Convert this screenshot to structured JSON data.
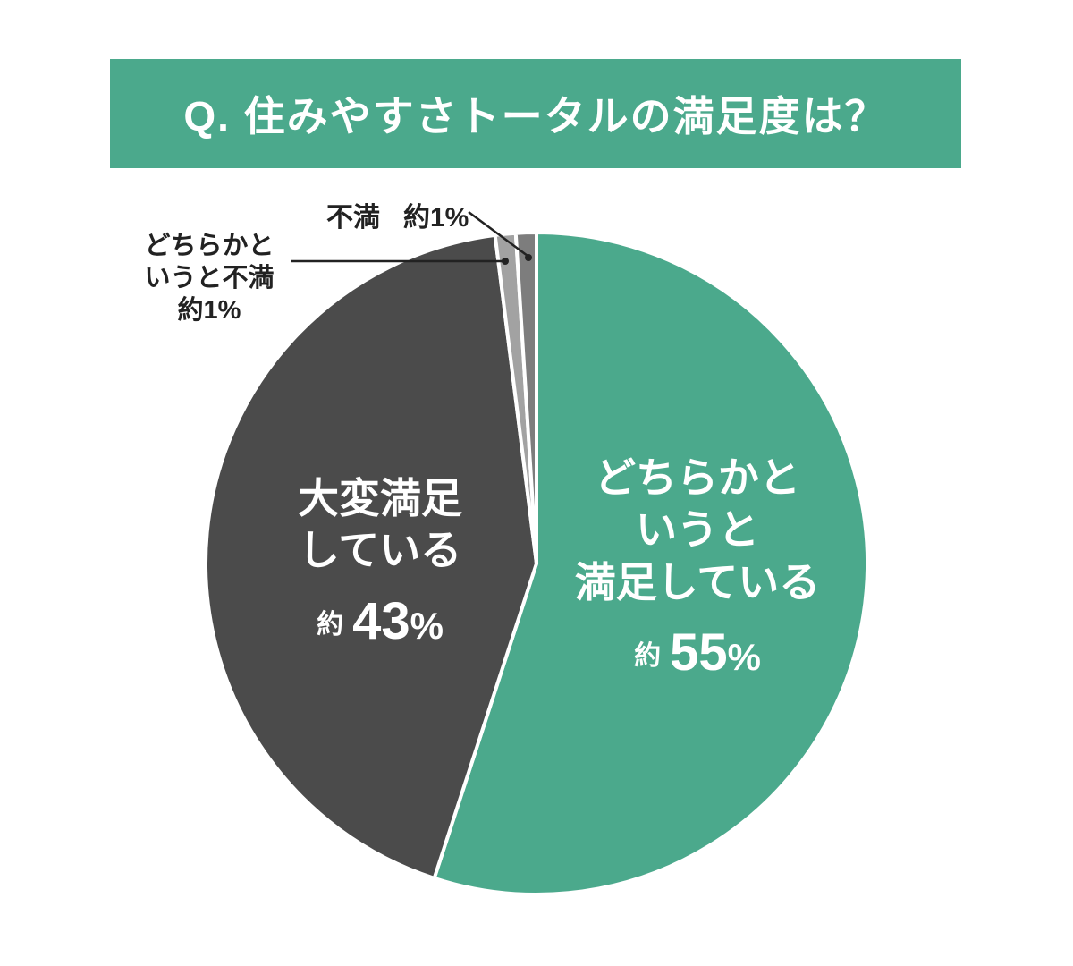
{
  "header": {
    "title": "Q. 住みやすさトータルの満足度は？",
    "bg_color": "#4ba98c",
    "text_color": "#ffffff"
  },
  "chart_data": {
    "type": "pie",
    "title": "Q. 住みやすさトータルの満足度は？",
    "unit": "%",
    "direction": "clockwise",
    "start_angle_deg": 0,
    "total": 100,
    "slices": [
      {
        "name": "どちらかというと満足している",
        "value": 55,
        "value_label": "約55%",
        "color": "#4ba98c",
        "label_placement": "inside",
        "label_lines": [
          "どちらかと",
          "いうと",
          "満足している"
        ],
        "approx": "約",
        "pct_num": "55",
        "pct_sign": "%"
      },
      {
        "name": "大変満足している",
        "value": 43,
        "value_label": "約43%",
        "color": "#4b4b4b",
        "label_placement": "inside",
        "label_lines": [
          "大変満足",
          "している"
        ],
        "approx": "約",
        "pct_num": "43",
        "pct_sign": "%"
      },
      {
        "name": "どちらかというと不満",
        "value": 1,
        "value_label": "約1%",
        "color": "#a2a2a2",
        "label_placement": "callout",
        "callout_lines": [
          "どちらかと",
          "いうと不満"
        ],
        "pct_label": "約1%"
      },
      {
        "name": "不満",
        "value": 1,
        "value_label": "約1%",
        "color": "#7d7d7d",
        "label_placement": "callout",
        "callout_lines": [
          "不満"
        ],
        "pct_label": "約1%"
      }
    ]
  }
}
